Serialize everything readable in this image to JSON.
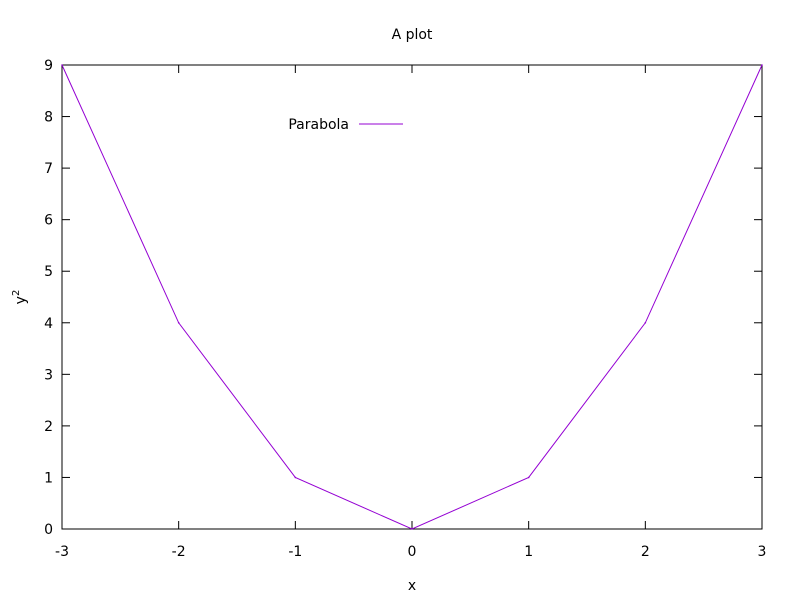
{
  "chart_data": {
    "type": "line",
    "title": "A plot",
    "xlabel": "x",
    "ylabel": "y",
    "ylabel_superscript": "2",
    "xlim": [
      -3,
      3
    ],
    "ylim": [
      0,
      9
    ],
    "x_ticks": [
      -3,
      -2,
      -1,
      0,
      1,
      2,
      3
    ],
    "y_ticks": [
      0,
      1,
      2,
      3,
      4,
      5,
      6,
      7,
      8,
      9
    ],
    "grid": false,
    "legend_position": "top-left",
    "series": [
      {
        "name": "Parabola",
        "color": "#9400d3",
        "x": [
          -3,
          -2,
          -1,
          0,
          1,
          2,
          3
        ],
        "y": [
          9,
          4,
          1,
          0,
          1,
          4,
          9
        ]
      }
    ]
  }
}
